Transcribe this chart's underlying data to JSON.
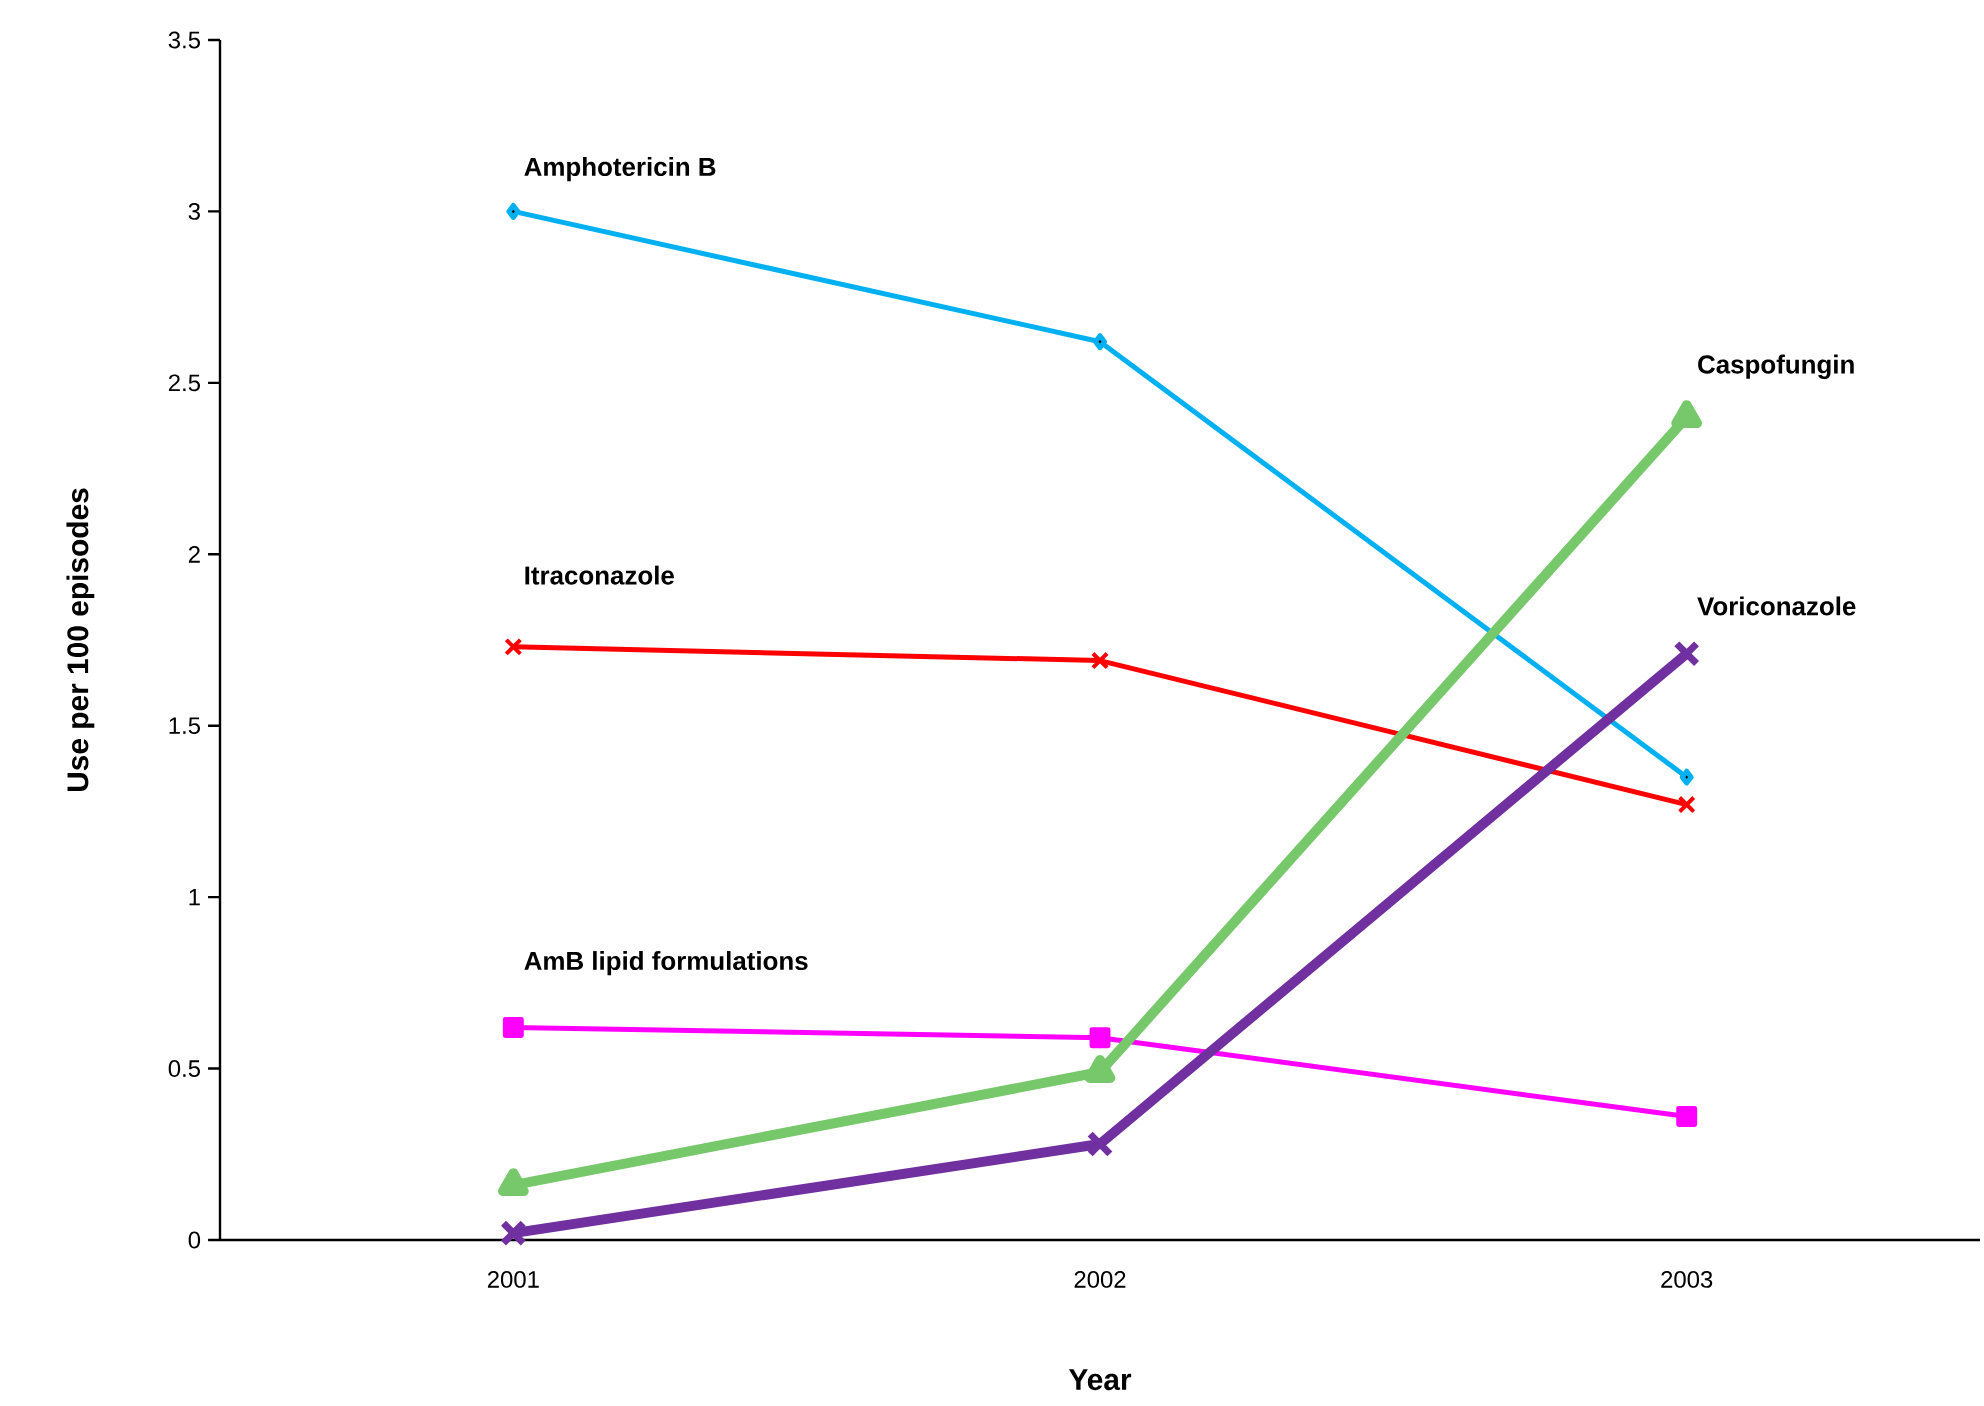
{
  "chart_data": {
    "type": "line",
    "xlabel": "Year",
    "ylabel": "Use per 100 episodes",
    "categories": [
      "2001",
      "2002",
      "2003"
    ],
    "ylim": [
      0,
      3.5
    ],
    "yticks": [
      0,
      0.5,
      1,
      1.5,
      2,
      2.5,
      3,
      3.5
    ],
    "grid": false,
    "legend": false,
    "series": [
      {
        "name": "Amphotericin B",
        "color": "#00b0f0",
        "marker": "diamond",
        "values": [
          3.0,
          2.62,
          1.35
        ]
      },
      {
        "name": "Itraconazole",
        "color": "#ff0000",
        "marker": "cross",
        "values": [
          1.73,
          1.69,
          1.27
        ]
      },
      {
        "name": "AmB lipid formulations",
        "color": "#ff00ff",
        "marker": "square",
        "values": [
          0.62,
          0.59,
          0.36
        ]
      },
      {
        "name": "Caspofungin",
        "color": "#77c86a",
        "marker": "triangle",
        "values": [
          0.16,
          0.49,
          2.4
        ]
      },
      {
        "name": "Voriconazole",
        "color": "#7030a0",
        "marker": "cross",
        "values": [
          0.02,
          0.28,
          1.71
        ]
      }
    ]
  }
}
